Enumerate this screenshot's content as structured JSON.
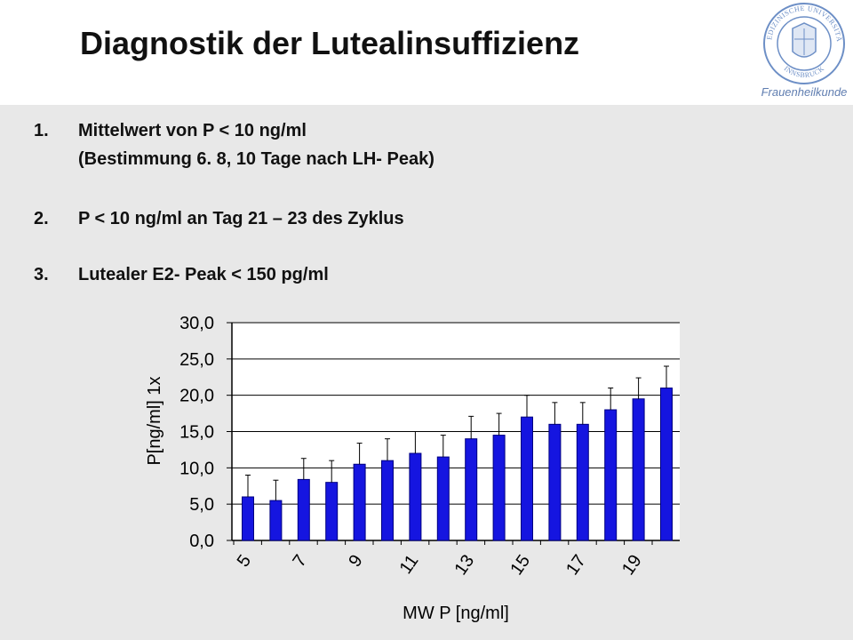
{
  "slide": {
    "title": "Diagnostik der Lutealinsuffizienz",
    "logo": {
      "seal_text_top": "MEDIZINISCHE UNIVERSITÄT",
      "seal_text_bottom": "INNSBRUCK",
      "department": "Frauenheilkunde"
    },
    "items": [
      {
        "number": "1.",
        "line1": "Mittelwert von P < 10 ng/ml",
        "line2": "(Bestimmung 6. 8, 10 Tage nach LH- Peak)"
      },
      {
        "number": "2.",
        "line1": "P < 10 ng/ml an Tag 21 – 23 des Zyklus"
      },
      {
        "number": "3.",
        "line1": "Lutealer E2- Peak < 150 pg/ml"
      }
    ]
  },
  "colors": {
    "background": "#e8e8e8",
    "header": "#ffffff",
    "bar": "#1515e0",
    "bar_edge": "#000080",
    "logo": "#6d8fc6"
  },
  "chart_data": {
    "type": "bar",
    "xlabel": "MW P [ng/ml]",
    "ylabel": "P[ng/ml]  1x",
    "ylim": [
      0,
      30
    ],
    "yticks": [
      "0,0",
      "5,0",
      "10,0",
      "15,0",
      "20,0",
      "25,0",
      "30,0"
    ],
    "grid": "horizontal",
    "categories": [
      "5",
      "6",
      "7",
      "8",
      "9",
      "10",
      "11",
      "12",
      "13",
      "14",
      "15",
      "16",
      "17",
      "18",
      "19",
      "20"
    ],
    "x_tick_labels": [
      "5",
      "7",
      "9",
      "11",
      "13",
      "15",
      "17",
      "19"
    ],
    "values": [
      6.0,
      5.5,
      8.4,
      8.0,
      10.5,
      11.0,
      12.0,
      11.5,
      14.0,
      14.5,
      17.0,
      16.0,
      16.0,
      18.0,
      19.5,
      21.0
    ],
    "error_upper": [
      9.0,
      8.3,
      11.3,
      11.0,
      13.4,
      14.0,
      15.0,
      14.5,
      17.1,
      17.5,
      20.0,
      19.0,
      19.0,
      21.0,
      22.4,
      24.0
    ]
  }
}
